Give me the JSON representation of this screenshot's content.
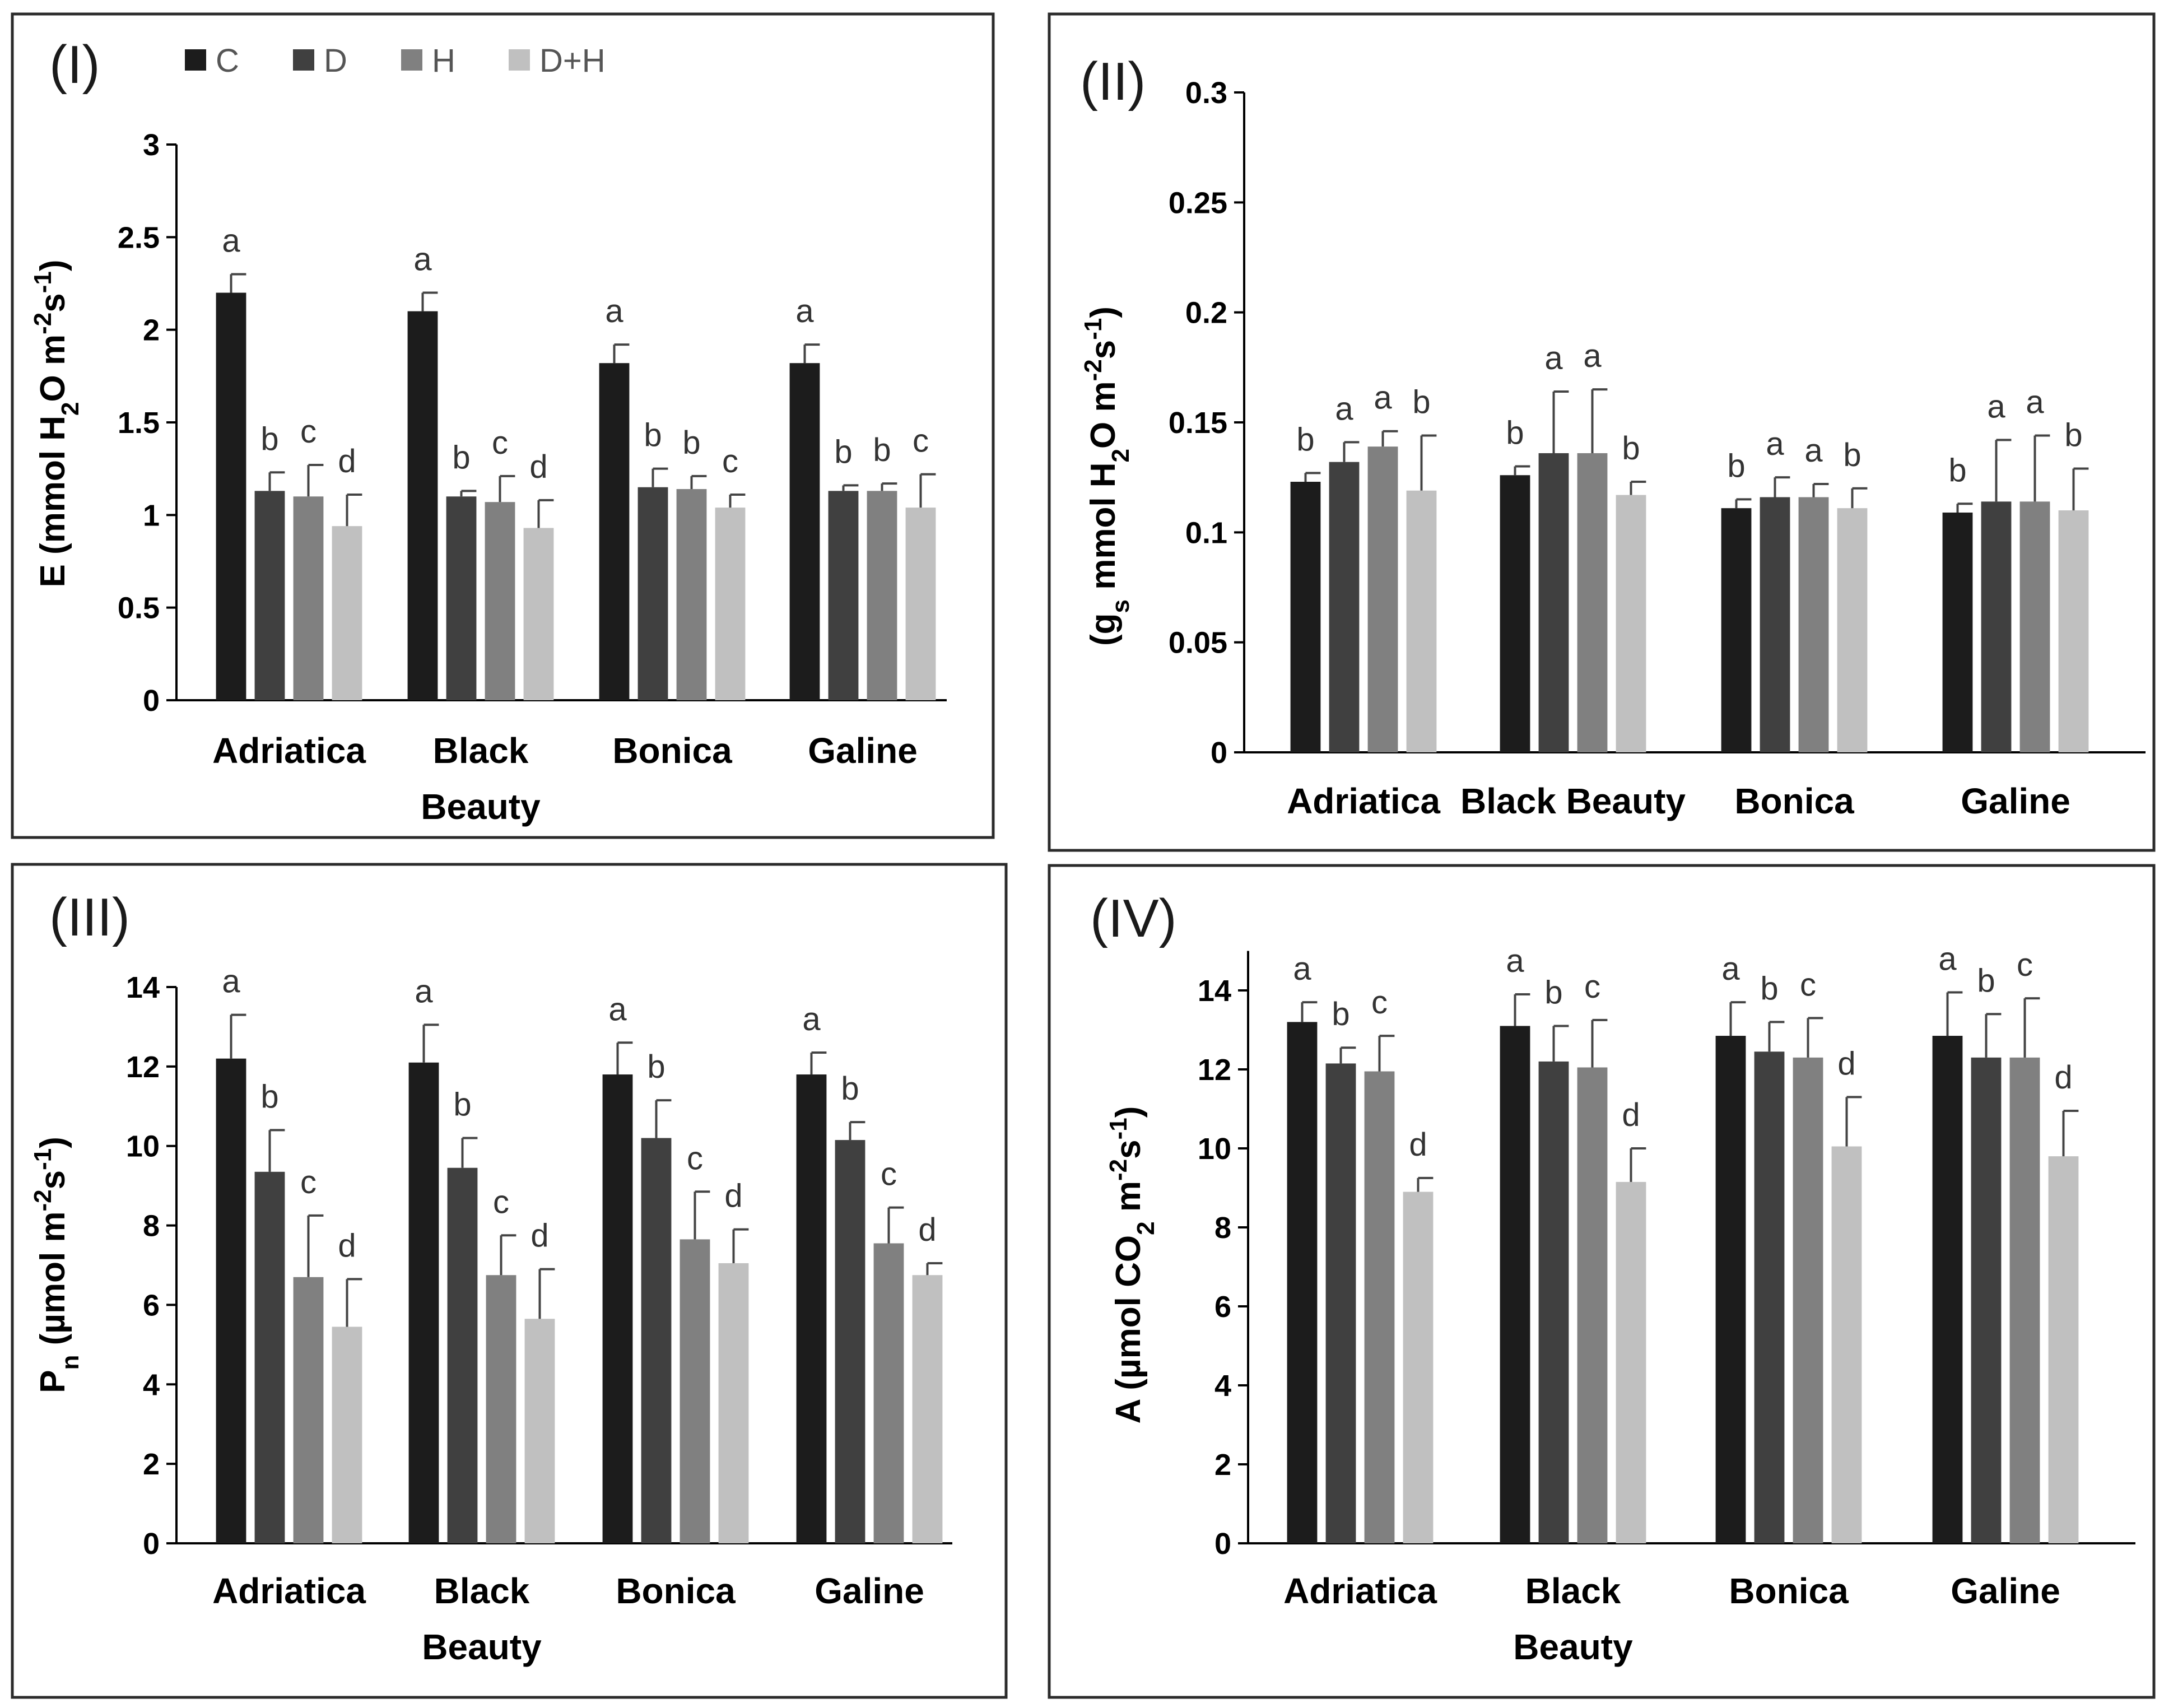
{
  "legend": {
    "entries": [
      {
        "name": "C",
        "color": "#1c1c1c"
      },
      {
        "name": "D",
        "color": "#404040"
      },
      {
        "name": "H",
        "color": "#808080"
      },
      {
        "name": "D+H",
        "color": "#c0c0c0"
      }
    ]
  },
  "chart_data": [
    {
      "id": "I",
      "panel_label": "(I)",
      "type": "bar",
      "ylabel": "E (mmol H2O m-2s-1)",
      "ylabel_parts": [
        "E (mmol H",
        "2",
        "O m",
        "-2",
        "s",
        "-1",
        ")"
      ],
      "ylim": [
        0,
        3
      ],
      "yticks": [
        "0",
        "0.5",
        "1",
        "1.5",
        "2",
        "2.5",
        "3"
      ],
      "categories": [
        "Adriatica",
        "Black Beauty",
        "Bonica",
        "Galine"
      ],
      "category_lines": [
        [
          "Adriatica"
        ],
        [
          "Black",
          "Beauty"
        ],
        [
          "Bonica"
        ],
        [
          "Galine"
        ]
      ],
      "series": [
        {
          "name": "C",
          "values": [
            2.2,
            2.1,
            1.82,
            1.82
          ],
          "errors": [
            0.1,
            0.1,
            0.1,
            0.1
          ],
          "letters": [
            "a",
            "a",
            "a",
            "a"
          ]
        },
        {
          "name": "D",
          "values": [
            1.13,
            1.1,
            1.15,
            1.13
          ],
          "errors": [
            0.1,
            0.03,
            0.1,
            0.03
          ],
          "letters": [
            "b",
            "b",
            "b",
            "b"
          ]
        },
        {
          "name": "H",
          "values": [
            1.1,
            1.07,
            1.14,
            1.13
          ],
          "errors": [
            0.17,
            0.14,
            0.07,
            0.04
          ],
          "letters": [
            "c",
            "c",
            "b",
            "b"
          ]
        },
        {
          "name": "D+H",
          "values": [
            0.94,
            0.93,
            1.04,
            1.04
          ],
          "errors": [
            0.17,
            0.15,
            0.07,
            0.18
          ],
          "letters": [
            "d",
            "d",
            "c",
            "c"
          ]
        }
      ]
    },
    {
      "id": "II",
      "panel_label": "(II)",
      "type": "bar",
      "ylabel": "(gs mmol H2O m-2s-1)",
      "ylabel_parts": [
        "(g",
        "s",
        " mmol H",
        "2",
        "O m",
        "-2",
        "s",
        "-1",
        ")"
      ],
      "ylim": [
        0,
        0.3
      ],
      "yticks": [
        "0",
        "0.05",
        "0.1",
        "0.15",
        "0.2",
        "0.25",
        "0.3"
      ],
      "categories": [
        "Adriatica",
        "Black Beauty",
        "Bonica",
        "Galine"
      ],
      "category_lines": [
        [
          "Adriatica"
        ],
        [
          "Black Beauty"
        ],
        [
          "Bonica"
        ],
        [
          "Galine"
        ]
      ],
      "series": [
        {
          "name": "C",
          "values": [
            0.123,
            0.126,
            0.111,
            0.109
          ],
          "errors": [
            0.004,
            0.004,
            0.004,
            0.004
          ],
          "letters": [
            "b",
            "b",
            "b",
            "b"
          ]
        },
        {
          "name": "D",
          "values": [
            0.132,
            0.136,
            0.116,
            0.114
          ],
          "errors": [
            0.009,
            0.028,
            0.009,
            0.028
          ],
          "letters": [
            "a",
            "a",
            "a",
            "a"
          ]
        },
        {
          "name": "H",
          "values": [
            0.139,
            0.136,
            0.116,
            0.114
          ],
          "errors": [
            0.007,
            0.029,
            0.006,
            0.03
          ],
          "letters": [
            "a",
            "a",
            "a",
            "a"
          ]
        },
        {
          "name": "D+H",
          "values": [
            0.119,
            0.117,
            0.111,
            0.11
          ],
          "errors": [
            0.025,
            0.006,
            0.009,
            0.019
          ],
          "letters": [
            "b",
            "b",
            "b",
            "b"
          ]
        }
      ]
    },
    {
      "id": "III",
      "panel_label": "(III)",
      "type": "bar",
      "ylabel": "Pn (µmol m-2s-1)",
      "ylabel_parts": [
        "P",
        "n",
        " (µmol m",
        "-2",
        "s",
        "-1",
        ")"
      ],
      "ylim": [
        0,
        14
      ],
      "yticks": [
        "0",
        "2",
        "4",
        "6",
        "8",
        "10",
        "12",
        "14"
      ],
      "categories": [
        "Adriatica",
        "Black Beauty",
        "Bonica",
        "Galine"
      ],
      "category_lines": [
        [
          "Adriatica"
        ],
        [
          "Black",
          "Beauty"
        ],
        [
          "Bonica"
        ],
        [
          "Galine"
        ]
      ],
      "series": [
        {
          "name": "C",
          "values": [
            12.2,
            12.1,
            11.8,
            11.8
          ],
          "errors": [
            1.1,
            0.95,
            0.8,
            0.55
          ],
          "letters": [
            "a",
            "a",
            "a",
            "a"
          ]
        },
        {
          "name": "D",
          "values": [
            9.35,
            9.45,
            10.2,
            10.15
          ],
          "errors": [
            1.05,
            0.75,
            0.95,
            0.45
          ],
          "letters": [
            "b",
            "b",
            "b",
            "b"
          ]
        },
        {
          "name": "H",
          "values": [
            6.7,
            6.75,
            7.65,
            7.55
          ],
          "errors": [
            1.55,
            1.0,
            1.2,
            0.9
          ],
          "letters": [
            "c",
            "c",
            "c",
            "c"
          ]
        },
        {
          "name": "D+H",
          "values": [
            5.45,
            5.65,
            7.05,
            6.75
          ],
          "errors": [
            1.2,
            1.25,
            0.85,
            0.3
          ],
          "letters": [
            "d",
            "d",
            "d",
            "d"
          ]
        }
      ]
    },
    {
      "id": "IV",
      "panel_label": "(IV)",
      "type": "bar",
      "ylabel": "A (µmol CO2 m-2s-1)",
      "ylabel_parts": [
        "A (µmol CO",
        "2",
        " m",
        "-2",
        "s",
        "-1",
        ")"
      ],
      "ylim": [
        0,
        15
      ],
      "yticks": [
        "0",
        "2",
        "4",
        "6",
        "8",
        "10",
        "12",
        "14"
      ],
      "categories": [
        "Adriatica",
        "Black Beauty",
        "Bonica",
        "Galine"
      ],
      "category_lines": [
        [
          "Adriatica"
        ],
        [
          "Black",
          "Beauty"
        ],
        [
          "Bonica"
        ],
        [
          "Galine"
        ]
      ],
      "series": [
        {
          "name": "C",
          "values": [
            13.2,
            13.1,
            12.85,
            12.85
          ],
          "errors": [
            0.5,
            0.8,
            0.85,
            1.1
          ],
          "letters": [
            "a",
            "a",
            "a",
            "a"
          ]
        },
        {
          "name": "D",
          "values": [
            12.15,
            12.2,
            12.45,
            12.3
          ],
          "errors": [
            0.4,
            0.9,
            0.75,
            1.1
          ],
          "letters": [
            "b",
            "b",
            "b",
            "b"
          ]
        },
        {
          "name": "H",
          "values": [
            11.95,
            12.05,
            12.3,
            12.3
          ],
          "errors": [
            0.9,
            1.2,
            1.0,
            1.5
          ],
          "letters": [
            "c",
            "c",
            "c",
            "c"
          ]
        },
        {
          "name": "D+H",
          "values": [
            8.9,
            9.15,
            10.05,
            9.8
          ],
          "errors": [
            0.35,
            0.85,
            1.25,
            1.15
          ],
          "letters": [
            "d",
            "d",
            "d",
            "d"
          ]
        }
      ]
    }
  ]
}
